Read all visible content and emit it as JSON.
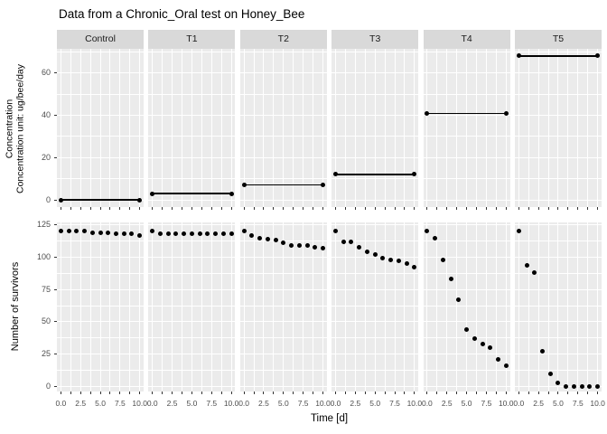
{
  "title": "Data from a Chronic_Oral test on Honey_Bee",
  "facets": [
    "Control",
    "T1",
    "T2",
    "T3",
    "T4",
    "T5"
  ],
  "axis": {
    "x_title": "Time [d]",
    "x_tick_labels": [
      "0.0",
      "2.5",
      "5.0",
      "7.5",
      "10.0"
    ],
    "x_tick_values": [
      0,
      2.5,
      5,
      7.5,
      10
    ],
    "x_minor_step": 1.25,
    "x_range": [
      -0.5,
      10.5
    ],
    "top_y_title_line1": "Concentration",
    "top_y_title_line2": "Concentration unit: ug/bee/day",
    "bottom_y_title": "Number of survivors"
  },
  "colors": {
    "panel_background": "#EBEBEB",
    "strip_background": "#D9D9D9",
    "grid": "#FFFFFF",
    "point": "#000000",
    "axis_text": "#4D4D4D",
    "tick_mark": "#333333",
    "title_text": "#000000"
  },
  "chart_data": [
    {
      "type": "line",
      "row": "top",
      "ylabel": "Concentration / Concentration unit: ug/bee/day",
      "xlabel": "Time [d]",
      "x": [
        0,
        10
      ],
      "series": [
        {
          "name": "Control",
          "values": [
            0,
            0
          ]
        },
        {
          "name": "T1",
          "values": [
            3,
            3
          ]
        },
        {
          "name": "T2",
          "values": [
            7,
            7
          ]
        },
        {
          "name": "T3",
          "values": [
            12,
            12
          ]
        },
        {
          "name": "T4",
          "values": [
            41,
            41
          ]
        },
        {
          "name": "T5",
          "values": [
            68,
            68
          ]
        }
      ],
      "yticks": [
        0,
        20,
        40,
        60
      ],
      "ylim": [
        -3.4,
        71.4
      ],
      "grid_step": 10,
      "grid": true,
      "legend": "none"
    },
    {
      "type": "scatter",
      "row": "bottom",
      "ylabel": "Number of survivors",
      "xlabel": "Time [d]",
      "x": [
        0,
        1,
        2,
        3,
        4,
        5,
        6,
        7,
        8,
        9,
        10
      ],
      "series": [
        {
          "name": "Control",
          "values": [
            120,
            120,
            120,
            120,
            119,
            119,
            119,
            118,
            118,
            118,
            117
          ]
        },
        {
          "name": "T1",
          "values": [
            120,
            118,
            118,
            118,
            118,
            118,
            118,
            118,
            118,
            118,
            118
          ]
        },
        {
          "name": "T2",
          "values": [
            120,
            117,
            115,
            114,
            113,
            111,
            109,
            109,
            109,
            108,
            107
          ]
        },
        {
          "name": "T3",
          "values": [
            120,
            112,
            112,
            108,
            104,
            102,
            99,
            98,
            97,
            95,
            92
          ]
        },
        {
          "name": "T4",
          "values": [
            120,
            115,
            98,
            83,
            67,
            44,
            37,
            33,
            30,
            21,
            16
          ]
        },
        {
          "name": "T5",
          "values": [
            120,
            94,
            88,
            27,
            10,
            3,
            0,
            0,
            0,
            0,
            0
          ]
        }
      ],
      "yticks": [
        0,
        25,
        50,
        75,
        100,
        125
      ],
      "ylim": [
        -4,
        127
      ],
      "grid_step": 12.5,
      "grid": true,
      "legend": "none"
    }
  ]
}
